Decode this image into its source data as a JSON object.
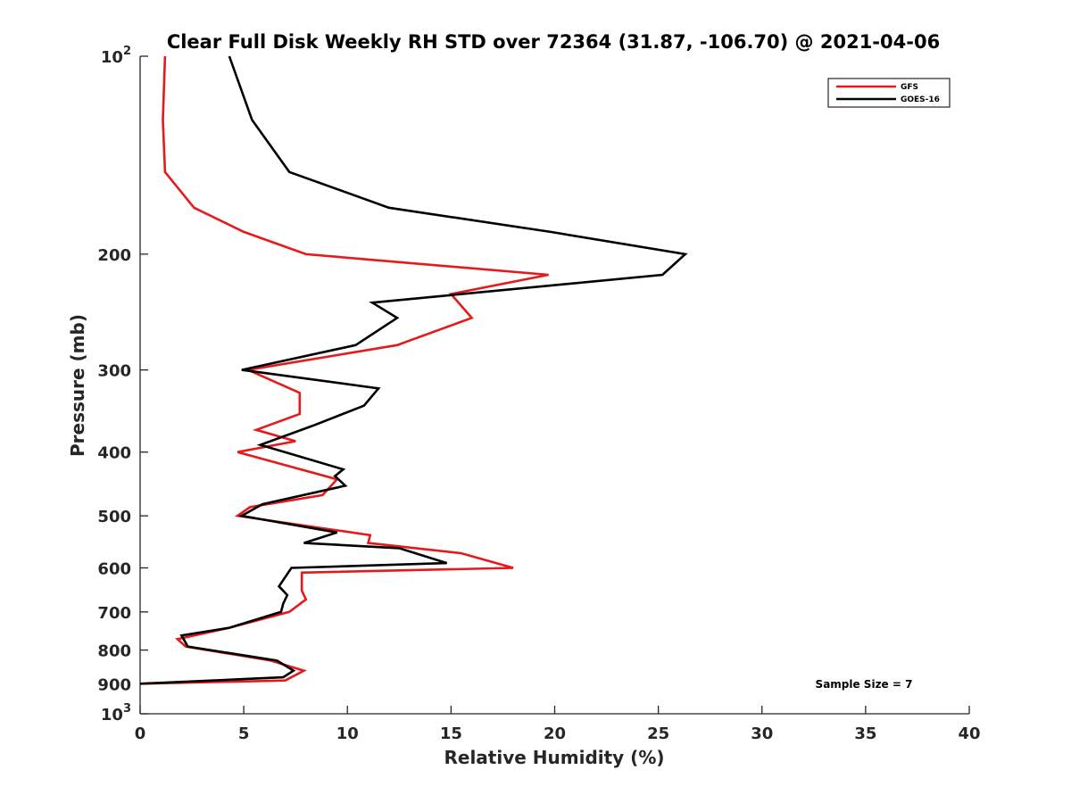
{
  "chart_data": {
    "type": "line",
    "title": "Clear Full Disk Weekly RH STD over 72364 (31.87, -106.70) @ 2021-04-06",
    "xlabel": "Relative Humidity (%)",
    "ylabel": "Pressure (mb)",
    "xlim": [
      0,
      40
    ],
    "ylim": [
      100,
      1000
    ],
    "y_scale": "log",
    "y_reversed": true,
    "grid": false,
    "legend_position": "top-right",
    "x_ticks": [
      0,
      5,
      10,
      15,
      20,
      25,
      30,
      35,
      40
    ],
    "x_tick_labels": [
      "0",
      "5",
      "10",
      "15",
      "20",
      "25",
      "30",
      "35",
      "40"
    ],
    "y_ticks": [
      100,
      200,
      300,
      400,
      500,
      600,
      700,
      800,
      900,
      1000
    ],
    "y_tick_labels": [
      {
        "base": "10",
        "exp": "2"
      },
      {
        "base": "200"
      },
      {
        "base": "300"
      },
      {
        "base": "400"
      },
      {
        "base": "500"
      },
      {
        "base": "600"
      },
      {
        "base": "700"
      },
      {
        "base": "800"
      },
      {
        "base": "900"
      },
      {
        "base": "10",
        "exp": "3"
      }
    ],
    "annotation": "Sample Size = 7",
    "series": [
      {
        "name": "GFS",
        "color": "#e41a1c",
        "points": [
          [
            1.2,
            100
          ],
          [
            1.1,
            125
          ],
          [
            1.2,
            150
          ],
          [
            2.6,
            170
          ],
          [
            5.0,
            185
          ],
          [
            8.0,
            200
          ],
          [
            19.7,
            215
          ],
          [
            15.0,
            230
          ],
          [
            16.0,
            250
          ],
          [
            12.4,
            275
          ],
          [
            5.2,
            300
          ],
          [
            7.7,
            325
          ],
          [
            7.7,
            350
          ],
          [
            5.6,
            370
          ],
          [
            7.5,
            385
          ],
          [
            4.7,
            400
          ],
          [
            9.5,
            440
          ],
          [
            8.8,
            465
          ],
          [
            5.3,
            485
          ],
          [
            4.7,
            500
          ],
          [
            11.1,
            535
          ],
          [
            11.0,
            550
          ],
          [
            15.5,
            570
          ],
          [
            18.0,
            600
          ],
          [
            7.8,
            610
          ],
          [
            7.8,
            650
          ],
          [
            8.0,
            670
          ],
          [
            7.2,
            700
          ],
          [
            4.3,
            740
          ],
          [
            1.8,
            770
          ],
          [
            2.2,
            790
          ],
          [
            6.3,
            830
          ],
          [
            7.9,
            860
          ],
          [
            7.0,
            890
          ],
          [
            0.0,
            900
          ]
        ]
      },
      {
        "name": "GOES-16",
        "color": "#000000",
        "points": [
          [
            4.3,
            100
          ],
          [
            5.4,
            125
          ],
          [
            7.2,
            150
          ],
          [
            12.0,
            170
          ],
          [
            19.8,
            185
          ],
          [
            26.3,
            200
          ],
          [
            25.2,
            215
          ],
          [
            11.2,
            237
          ],
          [
            12.4,
            250
          ],
          [
            10.4,
            275
          ],
          [
            4.9,
            300
          ],
          [
            11.5,
            320
          ],
          [
            10.8,
            340
          ],
          [
            8.3,
            365
          ],
          [
            5.8,
            390
          ],
          [
            9.8,
            425
          ],
          [
            9.4,
            435
          ],
          [
            9.9,
            450
          ],
          [
            5.9,
            480
          ],
          [
            4.9,
            500
          ],
          [
            9.5,
            530
          ],
          [
            7.9,
            550
          ],
          [
            12.5,
            560
          ],
          [
            14.8,
            590
          ],
          [
            7.3,
            600
          ],
          [
            6.7,
            640
          ],
          [
            7.1,
            660
          ],
          [
            6.9,
            680
          ],
          [
            6.8,
            700
          ],
          [
            4.3,
            740
          ],
          [
            2.0,
            760
          ],
          [
            2.3,
            790
          ],
          [
            6.6,
            830
          ],
          [
            7.4,
            860
          ],
          [
            6.9,
            880
          ],
          [
            0.0,
            900
          ]
        ]
      }
    ]
  }
}
